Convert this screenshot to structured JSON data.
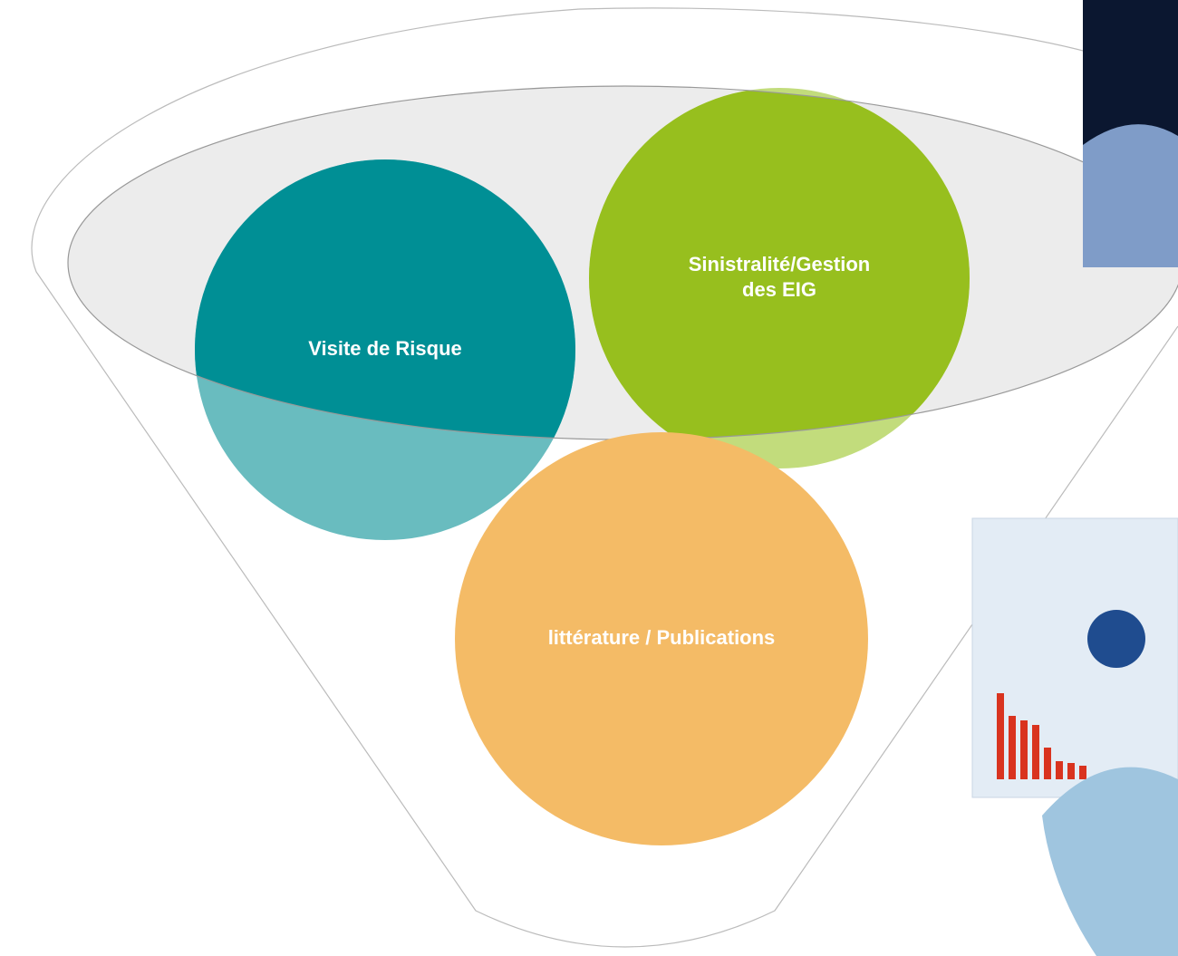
{
  "nodes": [
    {
      "lines": [
        "Visite de Risque"
      ]
    },
    {
      "lines": [
        "Sinistralité/Gestion",
        "des EIG"
      ]
    },
    {
      "lines": [
        "littérature / Publications"
      ]
    }
  ]
}
